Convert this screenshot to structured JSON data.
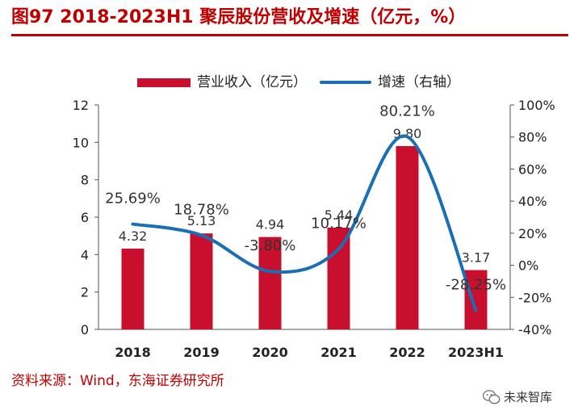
{
  "header": {
    "title": "图97  2018-2023H1 聚辰股份营收及增速（亿元，%）"
  },
  "legend": {
    "bar_label": "营业收入（亿元）",
    "line_label": "增速（右轴）"
  },
  "source": {
    "text": "资料来源：Wind，东海证券研究所"
  },
  "watermark": {
    "text": "未来智库",
    "icon": "wechat-icon"
  },
  "chart_data": {
    "type": "bar",
    "categories": [
      "2018",
      "2019",
      "2020",
      "2021",
      "2022",
      "2023H1"
    ],
    "series": [
      {
        "name": "营业收入（亿元）",
        "type": "bar",
        "axis": "left",
        "values": [
          4.32,
          5.13,
          4.94,
          5.44,
          9.8,
          3.17
        ],
        "labels": [
          "4.32",
          "5.13",
          "4.94",
          "5.44",
          "9.80",
          "3.17"
        ],
        "color": "#c8102e"
      },
      {
        "name": "增速（右轴）",
        "type": "line",
        "axis": "right",
        "values": [
          25.69,
          18.78,
          -3.8,
          10.17,
          80.21,
          -28.25
        ],
        "labels": [
          "25.69%",
          "18.78%",
          "-3.80%",
          "10.17%",
          "80.21%",
          "-28.25%"
        ],
        "color": "#1a6eb5"
      }
    ],
    "y_left": {
      "min": 0,
      "max": 12,
      "ticks": [
        "0",
        "2",
        "4",
        "6",
        "8",
        "10",
        "12"
      ]
    },
    "y_right": {
      "min": -40,
      "max": 100,
      "ticks": [
        "-40%",
        "-20%",
        "0%",
        "20%",
        "40%",
        "60%",
        "80%",
        "100%"
      ]
    },
    "grid": false,
    "legend_position": "top"
  }
}
